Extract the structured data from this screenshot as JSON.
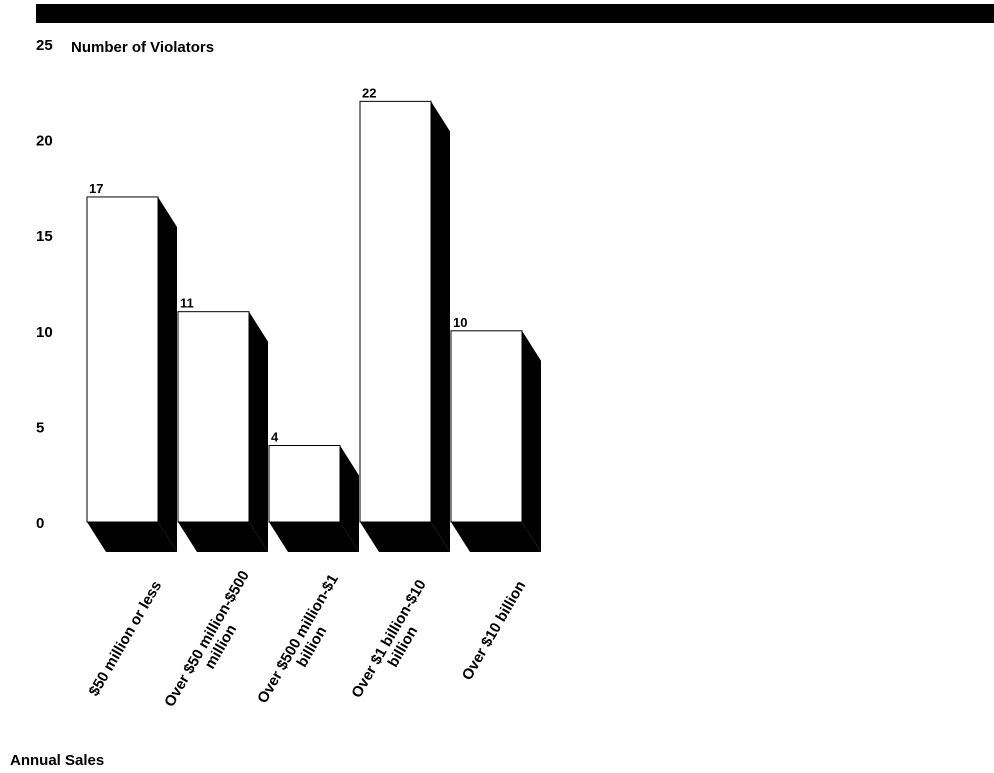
{
  "chart_data": {
    "type": "bar",
    "title": "",
    "ylabel": "Number of Violators",
    "xlabel": "Annual Sales",
    "categories": [
      [
        "$50 million or less"
      ],
      [
        "Over $50 million-$500",
        "million"
      ],
      [
        "Over $500 million-$1",
        "billion"
      ],
      [
        "Over $1 billion-$10",
        "billion"
      ],
      [
        "Over $10 billion"
      ]
    ],
    "values": [
      17,
      11,
      4,
      22,
      10
    ],
    "ylim": [
      0,
      25
    ],
    "yticks": [
      0,
      5,
      10,
      15,
      20,
      25
    ],
    "grid": false,
    "legend": "none",
    "colors": {
      "bar_face": "#ffffff",
      "bar_shadow": "#000000",
      "text": "#000000"
    }
  }
}
